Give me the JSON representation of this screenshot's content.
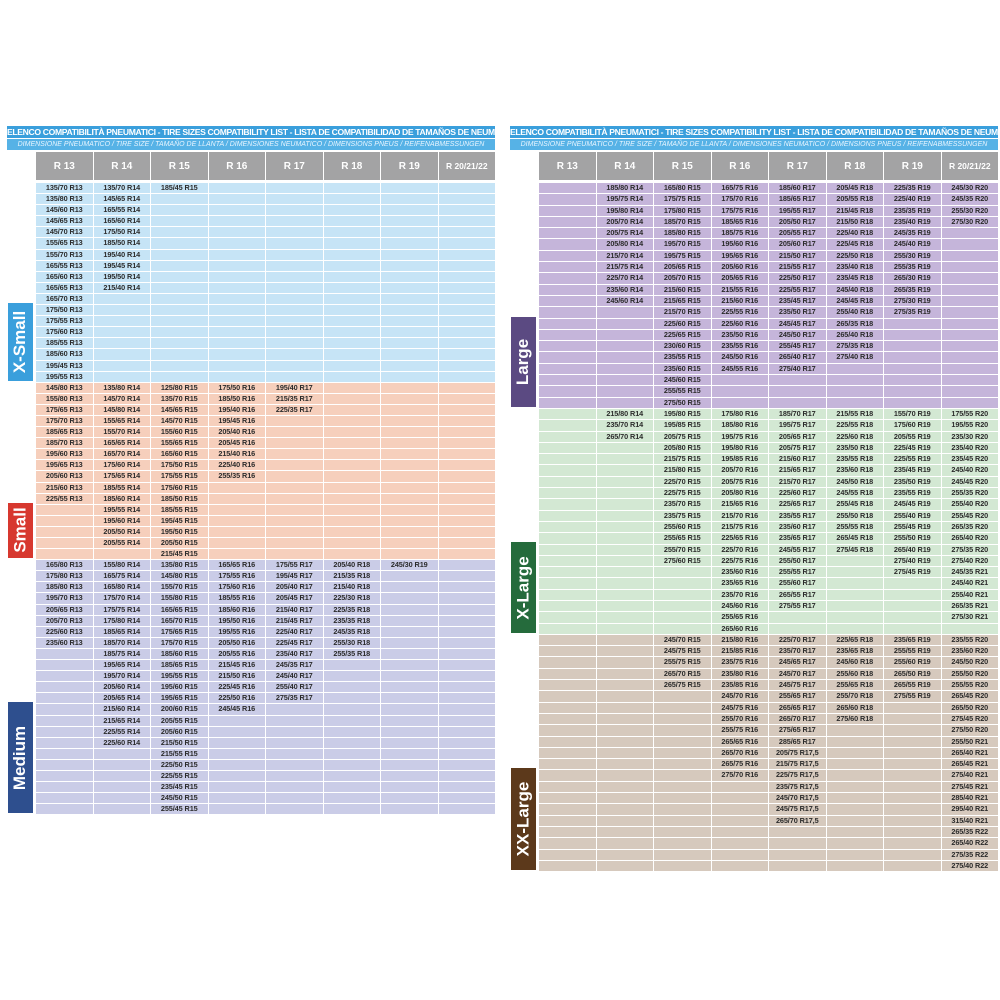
{
  "title": "ELENCO COMPATIBILITÀ PNEUMATICI - TIRE SIZES COMPATIBILITY LIST - LISTA DE COMPATIBILIDAD DE TAMAÑOS DE NEUMÁTICOS",
  "subtitle": "DIMENSIONE PNEUMATICO / TIRE SIZE  /  TAMAÑO DE LLANTA / DIMENSIONES NEUMATICO  /  DIMENSIONS PNEUS  /  REIFENABMESSUNGEN",
  "columns": [
    "R 13",
    "R 14",
    "R 15",
    "R 16",
    "R 17",
    "R 18",
    "R 19",
    "R 20/21/22"
  ],
  "panels": [
    {
      "sections": [
        {
          "label": "X-Small",
          "label_color": "#3a9fdc",
          "cell_color": "#c6e4f6",
          "label_rows": 7,
          "cols": [
            [
              "135/70 R13",
              "135/80 R13",
              "145/60 R13",
              "145/65 R13",
              "145/70 R13",
              "155/65 R13",
              "155/70 R13",
              "165/55 R13",
              "165/60 R13",
              "165/65 R13",
              "165/70 R13",
              "175/50 R13",
              "175/55 R13",
              "175/60 R13",
              "185/55 R13",
              "185/60 R13",
              "195/45 R13",
              "195/55 R13"
            ],
            [
              "135/70 R14",
              "145/65 R14",
              "165/55 R14",
              "165/60 R14",
              "175/50 R14",
              "185/50 R14",
              "195/40 R14",
              "195/45 R14",
              "195/50 R14",
              "215/40 R14"
            ],
            [
              "185/45 R15"
            ],
            [],
            [],
            [],
            [],
            []
          ]
        },
        {
          "label": "Small",
          "label_color": "#d7382f",
          "cell_color": "#f6cfbc",
          "label_rows": 5,
          "cols": [
            [
              "145/80 R13",
              "155/80 R13",
              "175/65 R13",
              "175/70 R13",
              "185/65 R13",
              "185/70 R13",
              "195/60 R13",
              "195/65 R13",
              "205/60 R13",
              "215/60 R13",
              "225/55 R13"
            ],
            [
              "135/80 R14",
              "145/70 R14",
              "145/80 R14",
              "155/65 R14",
              "155/70 R14",
              "165/65 R14",
              "165/70 R14",
              "175/60 R14",
              "175/65 R14",
              "185/55 R14",
              "185/60 R14",
              "195/55 R14",
              "195/60 R14",
              "205/50 R14",
              "205/55 R14"
            ],
            [
              "125/80 R15",
              "135/70 R15",
              "145/65 R15",
              "145/70 R15",
              "155/60 R15",
              "155/65 R15",
              "165/60 R15",
              "175/50 R15",
              "175/55 R15",
              "175/60 R15",
              "185/50 R15",
              "185/55 R15",
              "195/45 R15",
              "195/50 R15",
              "205/50 R15",
              "215/45 R15"
            ],
            [
              "175/50 R16",
              "185/50 R16",
              "195/40 R16",
              "195/45 R16",
              "205/40 R16",
              "205/45 R16",
              "215/40 R16",
              "225/40 R16",
              "255/35 R16"
            ],
            [
              "195/40 R17",
              "215/35 R17",
              "225/35 R17"
            ],
            [],
            [],
            []
          ]
        },
        {
          "label": "Medium",
          "label_color": "#2e4f8e",
          "cell_color": "#cacce7",
          "label_rows": 10,
          "cols": [
            [
              "165/80 R13",
              "175/80 R13",
              "185/80 R13",
              "195/70 R13",
              "205/65 R13",
              "205/70 R13",
              "225/60 R13",
              "235/60 R13"
            ],
            [
              "155/80 R14",
              "165/75 R14",
              "165/80 R14",
              "175/70 R14",
              "175/75 R14",
              "175/80 R14",
              "185/65 R14",
              "185/70 R14",
              "185/75 R14",
              "195/65 R14",
              "195/70 R14",
              "205/60 R14",
              "205/65 R14",
              "215/60 R14",
              "215/65 R14",
              "225/55 R14",
              "225/60 R14"
            ],
            [
              "135/80 R15",
              "145/80 R15",
              "155/70 R15",
              "155/80 R15",
              "165/65 R15",
              "165/70 R15",
              "175/65 R15",
              "175/70 R15",
              "185/60 R15",
              "185/65 R15",
              "195/55 R15",
              "195/60 R15",
              "195/65 R15",
              "200/60 R15",
              "205/55 R15",
              "205/60 R15",
              "215/50 R15",
              "215/55 R15",
              "225/50 R15",
              "225/55 R15",
              "235/45 R15",
              "245/50 R15",
              "255/45 R15"
            ],
            [
              "165/65 R16",
              "175/55 R16",
              "175/60 R16",
              "185/55 R16",
              "185/60 R16",
              "195/50 R16",
              "195/55 R16",
              "205/50 R16",
              "205/55 R16",
              "215/45 R16",
              "215/50 R16",
              "225/45 R16",
              "225/50 R16",
              "245/45 R16"
            ],
            [
              "175/55 R17",
              "195/45 R17",
              "205/40 R17",
              "205/45 R17",
              "215/40 R17",
              "215/45 R17",
              "225/40 R17",
              "225/45 R17",
              "235/40 R17",
              "245/35 R17",
              "245/40 R17",
              "255/40 R17",
              "275/35 R17"
            ],
            [
              "205/40 R18",
              "215/35 R18",
              "215/40 R18",
              "225/30 R18",
              "225/35 R18",
              "235/35 R18",
              "245/35 R18",
              "255/30 R18",
              "255/35 R18"
            ],
            [
              "245/30 R19"
            ],
            []
          ]
        }
      ]
    },
    {
      "sections": [
        {
          "label": "Large",
          "label_color": "#5b4a82",
          "cell_color": "#c5b5da",
          "label_rows": 8,
          "cols": [
            [],
            [
              "185/80 R14",
              "195/75 R14",
              "195/80 R14",
              "205/70 R14",
              "205/75 R14",
              "205/80 R14",
              "215/70 R14",
              "215/75 R14",
              "225/70 R14",
              "235/60 R14",
              "245/60 R14"
            ],
            [
              "165/80 R15",
              "175/75 R15",
              "175/80 R15",
              "185/70 R15",
              "185/80 R15",
              "195/70 R15",
              "195/75 R15",
              "205/65 R15",
              "205/70 R15",
              "215/60 R15",
              "215/65 R15",
              "215/70 R15",
              "225/60 R15",
              "225/65 R15",
              "230/60 R15",
              "235/55 R15",
              "235/60 R15",
              "245/60 R15",
              "255/55 R15",
              "275/50 R15"
            ],
            [
              "165/75 R16",
              "175/70 R16",
              "175/75 R16",
              "185/65 R16",
              "185/75 R16",
              "195/60 R16",
              "195/65 R16",
              "205/60 R16",
              "205/65 R16",
              "215/55 R16",
              "215/60 R16",
              "225/55 R16",
              "225/60 R16",
              "235/50 R16",
              "235/55 R16",
              "245/50 R16",
              "245/55 R16"
            ],
            [
              "185/60 R17",
              "185/65 R17",
              "195/55 R17",
              "205/50 R17",
              "205/55 R17",
              "205/60 R17",
              "215/50 R17",
              "215/55 R17",
              "225/50 R17",
              "225/55 R17",
              "235/45 R17",
              "235/50 R17",
              "245/45 R17",
              "245/50 R17",
              "255/45 R17",
              "265/40 R17",
              "275/40 R17"
            ],
            [
              "205/45 R18",
              "205/55 R18",
              "215/45 R18",
              "215/50 R18",
              "225/40 R18",
              "225/45 R18",
              "225/50 R18",
              "235/40 R18",
              "235/45 R18",
              "245/40 R18",
              "245/45 R18",
              "255/40 R18",
              "265/35 R18",
              "265/40 R18",
              "275/35 R18",
              "275/40 R18"
            ],
            [
              "225/35 R19",
              "225/40 R19",
              "235/35 R19",
              "235/40 R19",
              "245/35 R19",
              "245/40 R19",
              "255/30 R19",
              "255/35 R19",
              "265/30 R19",
              "265/35 R19",
              "275/30 R19",
              "275/35 R19"
            ],
            [
              "245/30 R20",
              "245/35 R20",
              "255/30 R20",
              "275/30 R20"
            ]
          ]
        },
        {
          "label": "X-Large",
          "label_color": "#256b3c",
          "cell_color": "#d3e8d3",
          "label_rows": 8,
          "cols": [
            [],
            [
              "215/80 R14",
              "235/70 R14",
              "265/70 R14"
            ],
            [
              "195/80 R15",
              "195/85 R15",
              "205/75 R15",
              "205/80 R15",
              "215/75 R15",
              "215/80 R15",
              "225/70 R15",
              "225/75 R15",
              "235/70 R15",
              "235/75 R15",
              "255/60 R15",
              "255/65 R15",
              "255/70 R15",
              "275/60 R15"
            ],
            [
              "175/80 R16",
              "185/80 R16",
              "195/75 R16",
              "195/80 R16",
              "195/85 R16",
              "205/70 R16",
              "205/75 R16",
              "205/80 R16",
              "215/65 R16",
              "215/70 R16",
              "215/75 R16",
              "225/65 R16",
              "225/70 R16",
              "225/75 R16",
              "235/60 R16",
              "235/65 R16",
              "235/70 R16",
              "245/60 R16",
              "255/65 R16",
              "265/60 R16"
            ],
            [
              "185/70 R17",
              "195/75 R17",
              "205/65 R17",
              "205/75 R17",
              "215/60 R17",
              "215/65 R17",
              "215/70 R17",
              "225/60 R17",
              "225/65 R17",
              "235/55 R17",
              "235/60 R17",
              "235/65 R17",
              "245/55 R17",
              "255/50 R17",
              "255/55 R17",
              "255/60 R17",
              "265/55 R17",
              "275/55 R17"
            ],
            [
              "215/55 R18",
              "225/55 R18",
              "225/60 R18",
              "235/50 R18",
              "235/55 R18",
              "235/60 R18",
              "245/50 R18",
              "245/55 R18",
              "255/45 R18",
              "255/50 R18",
              "255/55 R18",
              "265/45 R18",
              "275/45 R18"
            ],
            [
              "155/70 R19",
              "175/60 R19",
              "205/55 R19",
              "225/45 R19",
              "225/55 R19",
              "235/45 R19",
              "235/50 R19",
              "235/55 R19",
              "245/45 R19",
              "255/40 R19",
              "255/45 R19",
              "255/50 R19",
              "265/40 R19",
              "275/40 R19",
              "275/45 R19"
            ],
            [
              "175/55 R20",
              "195/55 R20",
              "235/30 R20",
              "235/40 R20",
              "235/45 R20",
              "245/40 R20",
              "245/45 R20",
              "255/35 R20",
              "255/40 R20",
              "255/45 R20",
              "265/35 R20",
              "265/40 R20",
              "275/35 R20",
              "275/40 R20",
              "245/35 R21",
              "245/40 R21",
              "255/40 R21",
              "265/35 R21",
              "275/30 R21"
            ]
          ]
        },
        {
          "label": "XX-Large",
          "label_color": "#5c391b",
          "cell_color": "#d6c9bd",
          "label_rows": 9,
          "cols": [
            [],
            [],
            [
              "245/70 R15",
              "245/75 R15",
              "255/75 R15",
              "265/70 R15",
              "265/75 R15"
            ],
            [
              "215/80 R16",
              "215/85 R16",
              "235/75 R16",
              "235/80 R16",
              "235/85 R16",
              "245/70 R16",
              "245/75 R16",
              "255/70 R16",
              "255/75 R16",
              "265/65 R16",
              "265/70 R16",
              "265/75 R16",
              "275/70 R16"
            ],
            [
              "225/70 R17",
              "235/70 R17",
              "245/65 R17",
              "245/70 R17",
              "245/75 R17",
              "255/65 R17",
              "265/65 R17",
              "265/70 R17",
              "275/65 R17",
              "285/65 R17",
              "205/75 R17,5",
              "215/75 R17,5",
              "225/75 R17,5",
              "235/75 R17,5",
              "245/70 R17,5",
              "245/75 R17,5",
              "265/70 R17,5"
            ],
            [
              "225/65 R18",
              "235/65 R18",
              "245/60 R18",
              "255/60 R18",
              "255/65 R18",
              "255/70 R18",
              "265/60 R18",
              "275/60 R18"
            ],
            [
              "235/65 R19",
              "255/55 R19",
              "255/60 R19",
              "265/50 R19",
              "265/55 R19",
              "275/55 R19"
            ],
            [
              "235/55 R20",
              "235/60 R20",
              "245/50 R20",
              "255/50 R20",
              "255/55 R20",
              "265/45 R20",
              "265/50 R20",
              "275/45 R20",
              "275/50 R20",
              "255/50 R21",
              "265/40 R21",
              "265/45 R21",
              "275/40 R21",
              "275/45 R21",
              "285/40 R21",
              "295/40 R21",
              "315/40 R21",
              "265/35 R22",
              "265/40 R22",
              "275/35 R22",
              "275/40 R22"
            ]
          ]
        }
      ]
    }
  ]
}
